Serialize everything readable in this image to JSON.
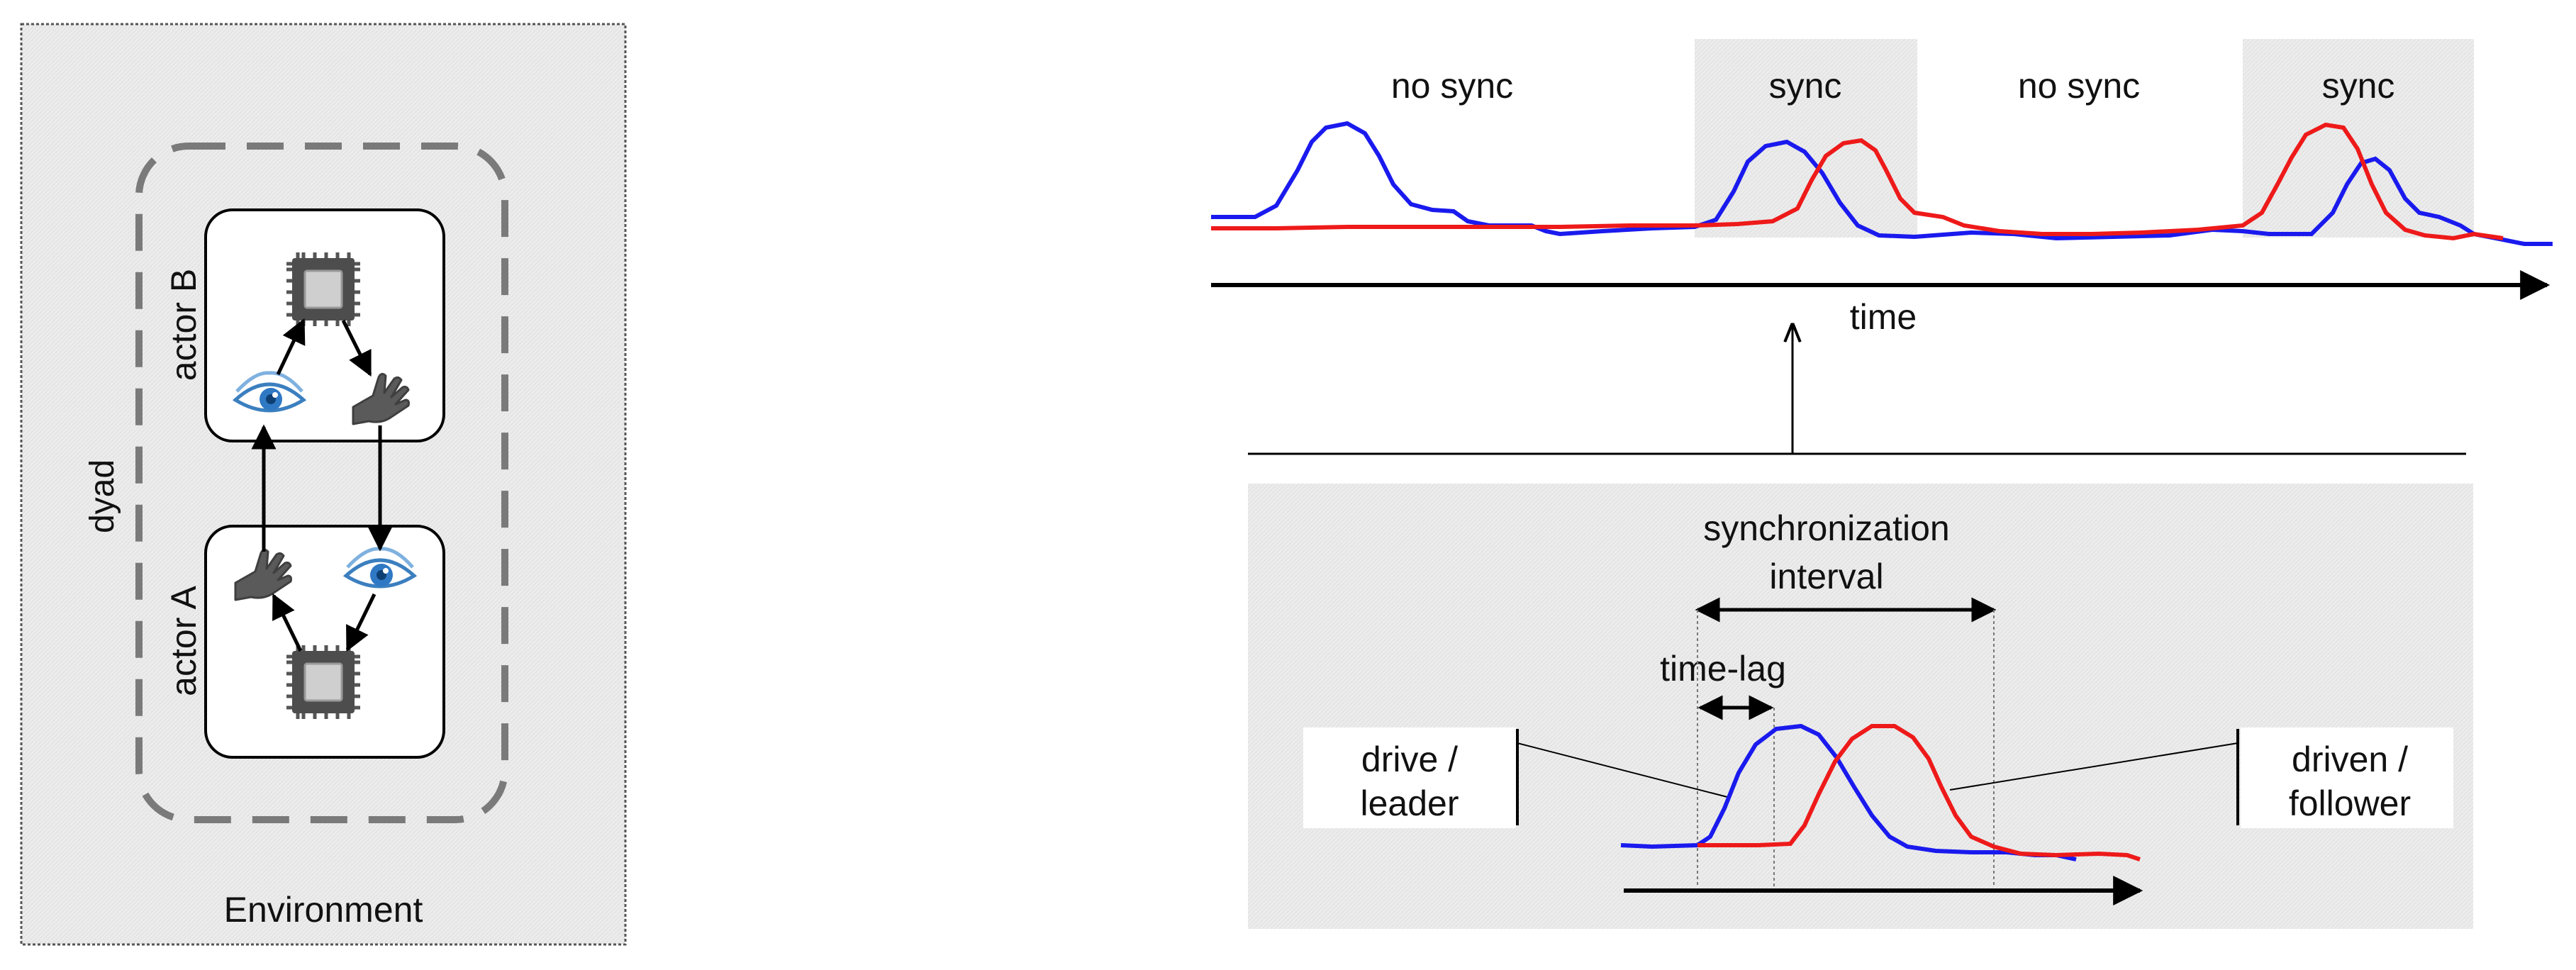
{
  "left_panel": {
    "environment_label": "Environment",
    "dyad_label": "dyad",
    "actor_b_label": "actor B",
    "actor_a_label": "actor A"
  },
  "timeline": {
    "segments": [
      "no sync",
      "sync",
      "no sync",
      "sync"
    ],
    "axis_label": "time"
  },
  "detail": {
    "sync_interval_label_1": "synchronization",
    "sync_interval_label_2": "interval",
    "time_lag_label": "time-lag",
    "leader_label_1": "drive /",
    "leader_label_2": "leader",
    "follower_label_1": "driven /",
    "follower_label_2": "follower"
  },
  "icons": [
    "chip-icon",
    "eye-icon",
    "hand-icon"
  ],
  "colors": {
    "blue_signal": "#1a1aee",
    "red_signal": "#ee1a1a",
    "panel_fill": "#ededed",
    "dash_stroke": "#7a7a7a"
  }
}
